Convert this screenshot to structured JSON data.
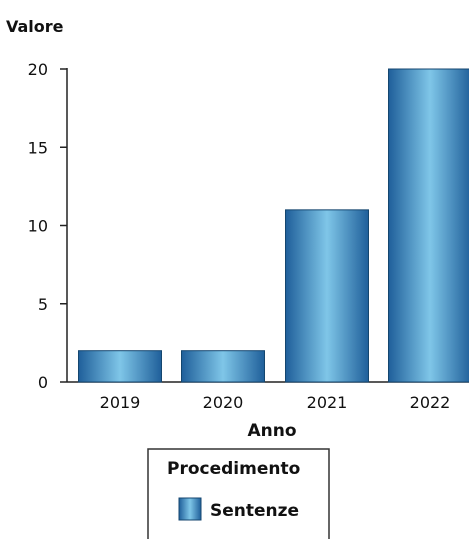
{
  "chart_data": {
    "type": "bar",
    "title": "",
    "categories": [
      "2019",
      "2020",
      "2021",
      "2022"
    ],
    "series": [
      {
        "name": "Sentenze",
        "values": [
          2,
          2,
          11,
          20
        ]
      }
    ],
    "ylabel": "Valore",
    "xlabel": "Anno",
    "ylim": [
      0,
      20
    ],
    "yticks": [
      "0",
      "5",
      "10",
      "15",
      "20"
    ],
    "grid": false,
    "legend": {
      "title": "Procedimento",
      "placement": "bottom-center"
    },
    "colors": {
      "bar_dark": "#1f5f9a",
      "bar_light": "#7fc6e8",
      "bar_edge": "#14466f"
    }
  }
}
